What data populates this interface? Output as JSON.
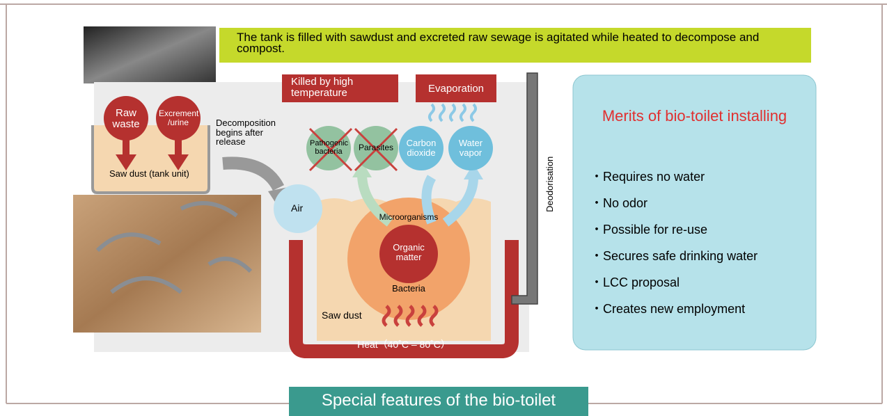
{
  "banner": "The tank is filled with sawdust and excreted raw sewage is agitated while heated to decompose and compost.",
  "tank": {
    "raw_waste": "Raw waste",
    "excrement": "Excrement /urine",
    "saw_dust_unit": "Saw dust (tank unit)"
  },
  "decomposition": "Decomposition begins after release",
  "killed": "Killed by high temperature",
  "evaporation": "Evaporation",
  "pathogenic": "Pathogenic bacteria",
  "parasites": "Parasites",
  "carbon": "Carbon dioxide",
  "water": "Water vapor",
  "air": "Air",
  "microorganisms": "Microorganisms",
  "organic": "Organic matter",
  "bacteria": "Bacteria",
  "saw_dust": "Saw dust",
  "heat": "Heat（40˚C – 80˚C）",
  "deodorisation": "Deodorisation",
  "merits": {
    "title": "Merits of bio-toilet installing",
    "items": [
      "・Requires no water",
      "・No odor",
      "・Possible for re-use",
      "・Secures safe drinking water",
      "・LCC proposal",
      "・Creates new employment"
    ]
  },
  "footer": "Special features of the bio-toilet"
}
